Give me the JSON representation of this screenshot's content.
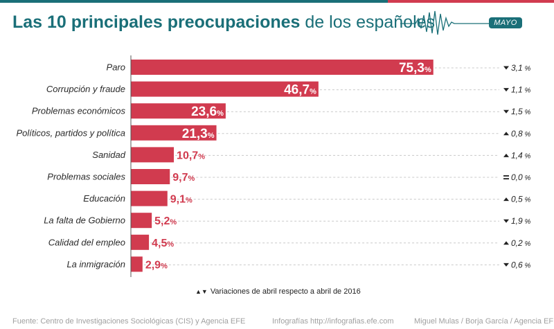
{
  "title": {
    "bold": "Las 10 principales preocupaciones",
    "normal": "de los españoles"
  },
  "badge": "MAYO",
  "colors": {
    "bar": "#d13b4f",
    "title": "#1a6f78",
    "badge": "#1a6f78",
    "wave": "#1a6f78",
    "topbar_left": "#1a6f78",
    "topbar_right": "#d13b4f"
  },
  "chart_data": {
    "type": "bar",
    "orientation": "horizontal",
    "title": "Las 10 principales preocupaciones de los españoles",
    "unit": "%",
    "xlim": [
      0,
      100
    ],
    "categories": [
      "Paro",
      "Corrupción y fraude",
      "Problemas económicos",
      "Políticos, partidos y política",
      "Sanidad",
      "Problemas sociales",
      "Educación",
      "La falta de Gobierno",
      "Calidad del empleo",
      "La inmigración"
    ],
    "values": [
      75.3,
      46.7,
      23.6,
      21.3,
      10.7,
      9.7,
      9.1,
      5.2,
      4.5,
      2.9
    ],
    "value_labels": [
      "75,3",
      "46,7",
      "23,6",
      "21,3",
      "10,7",
      "9,7",
      "9,1",
      "5,2",
      "4,5",
      "2,9"
    ],
    "changes": [
      {
        "dir": "down",
        "value": "3,1"
      },
      {
        "dir": "down",
        "value": "1,1"
      },
      {
        "dir": "down",
        "value": "1,5"
      },
      {
        "dir": "up",
        "value": "0,8"
      },
      {
        "dir": "up",
        "value": "1,4"
      },
      {
        "dir": "equal",
        "value": "0,0"
      },
      {
        "dir": "up",
        "value": "0,5"
      },
      {
        "dir": "down",
        "value": "1,9"
      },
      {
        "dir": "up",
        "value": "0,2"
      },
      {
        "dir": "down",
        "value": "0,6"
      }
    ]
  },
  "legend": "Variaciones de abril respecto a abril de 2016",
  "footer": {
    "source": "Fuente: Centro de Investigaciones Sociológicas (CIS) y Agencia EFE",
    "web": "Infografías http://infografias.efe.com",
    "authors": "Miguel Mulas / Borja García / Agencia EFE"
  }
}
